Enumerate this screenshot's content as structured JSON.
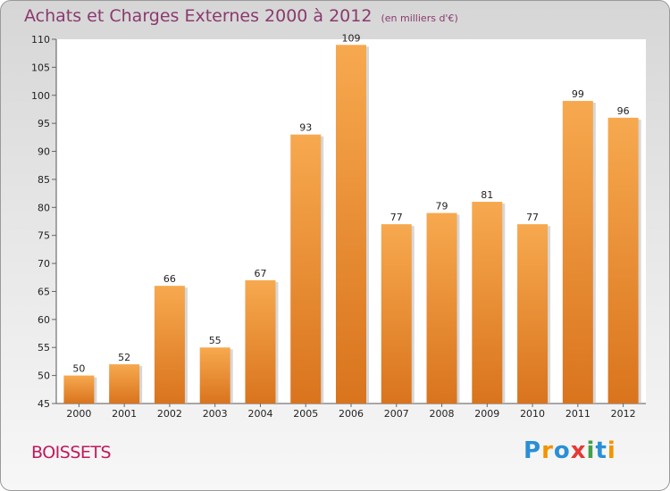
{
  "title": "Achats et Charges Externes 2000 à 2012",
  "subtitle": "(en milliers d'€)",
  "commune": "BOISSETS",
  "logo": {
    "letters": [
      "P",
      "r",
      "o",
      "x",
      "i",
      "t",
      "i"
    ],
    "colors": [
      "#2a8fd6",
      "#f29400",
      "#2a8fd6",
      "#e53935",
      "#43a047",
      "#2a8fd6",
      "#f29400"
    ]
  },
  "colors": {
    "bar_top": "#f7a94f",
    "bar_bottom": "#d9741d",
    "title": "#8a3a6e",
    "commune": "#c2185b"
  },
  "chart_data": {
    "type": "bar",
    "categories": [
      "2000",
      "2001",
      "2002",
      "2003",
      "2004",
      "2005",
      "2006",
      "2007",
      "2008",
      "2009",
      "2010",
      "2011",
      "2012"
    ],
    "values": [
      50,
      52,
      66,
      55,
      67,
      93,
      109,
      77,
      79,
      81,
      77,
      99,
      96
    ],
    "title": "Achats et Charges Externes 2000 à 2012",
    "xlabel": "",
    "ylabel": "",
    "ylim": [
      45,
      110
    ],
    "yticks": [
      45,
      50,
      55,
      60,
      65,
      70,
      75,
      80,
      85,
      90,
      95,
      100,
      105,
      110
    ],
    "grid": false,
    "legend": "none"
  }
}
